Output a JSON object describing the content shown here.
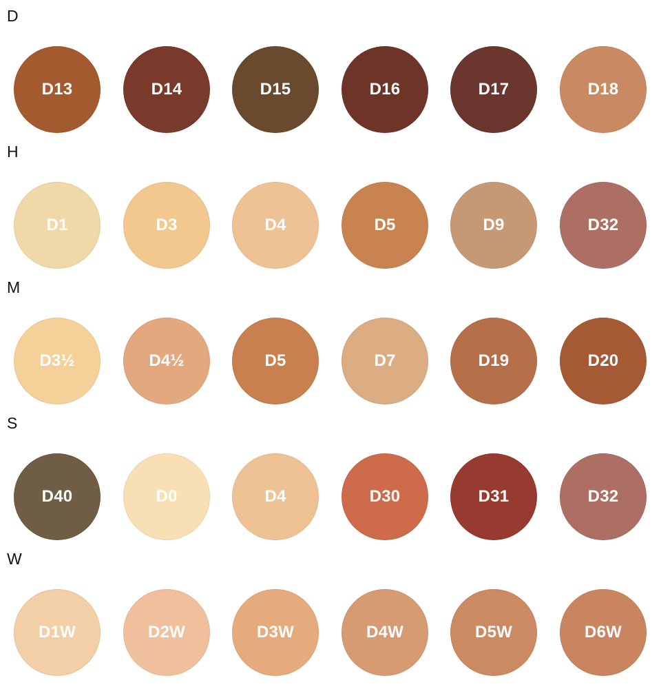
{
  "groups": [
    {
      "label": "D",
      "swatches": [
        {
          "code": "D13",
          "color": "#a35a2e"
        },
        {
          "code": "D14",
          "color": "#7a3a2b"
        },
        {
          "code": "D15",
          "color": "#6a4a2e"
        },
        {
          "code": "D16",
          "color": "#6f3428"
        },
        {
          "code": "D17",
          "color": "#6a362d"
        },
        {
          "code": "D18",
          "color": "#c98a63"
        }
      ]
    },
    {
      "label": "H",
      "swatches": [
        {
          "code": "D1",
          "color": "#f0d8a8"
        },
        {
          "code": "D3",
          "color": "#f2c88f"
        },
        {
          "code": "D4",
          "color": "#efc296"
        },
        {
          "code": "D5",
          "color": "#c98350"
        },
        {
          "code": "D9",
          "color": "#c79874"
        },
        {
          "code": "D32",
          "color": "#ad6e64"
        }
      ]
    },
    {
      "label": "M",
      "swatches": [
        {
          "code": "D3½",
          "color": "#f5d19a"
        },
        {
          "code": "D4½",
          "color": "#e3a87d"
        },
        {
          "code": "D5",
          "color": "#c9804e"
        },
        {
          "code": "D7",
          "color": "#dcac83"
        },
        {
          "code": "D19",
          "color": "#b67049"
        },
        {
          "code": "D20",
          "color": "#a65a34"
        }
      ]
    },
    {
      "label": "S",
      "swatches": [
        {
          "code": "D40",
          "color": "#6f5d45"
        },
        {
          "code": "D0",
          "color": "#f8e0b4"
        },
        {
          "code": "D4",
          "color": "#efc296"
        },
        {
          "code": "D30",
          "color": "#cd6b4a"
        },
        {
          "code": "D31",
          "color": "#973b31"
        },
        {
          "code": "D32",
          "color": "#ad6e64"
        }
      ]
    },
    {
      "label": "W",
      "swatches": [
        {
          "code": "D1W",
          "color": "#f2cfa6"
        },
        {
          "code": "D2W",
          "color": "#efc09b"
        },
        {
          "code": "D3W",
          "color": "#e6ab7d"
        },
        {
          "code": "D4W",
          "color": "#d69b72"
        },
        {
          "code": "D5W",
          "color": "#cc8a63"
        },
        {
          "code": "D6W",
          "color": "#c88560"
        }
      ]
    }
  ]
}
